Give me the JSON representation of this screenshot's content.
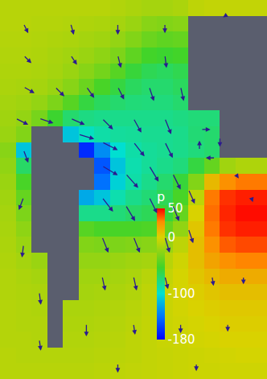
{
  "chart_data": {
    "type": "heatmap",
    "x": [
      0,
      1,
      2,
      3,
      4,
      5,
      6,
      7,
      8,
      9,
      10,
      11,
      12,
      13,
      14,
      15,
      16
    ],
    "y": [
      0,
      1,
      2,
      3,
      4,
      5,
      6,
      7,
      8,
      9,
      10,
      11,
      12,
      13,
      14,
      15,
      16,
      17,
      18,
      19,
      20,
      21,
      22,
      23
    ],
    "z": [
      [
        -12,
        -12,
        -12,
        -12,
        -12,
        -12,
        -12,
        -14,
        -16,
        -18,
        -18,
        -16,
        -10,
        -8,
        -8,
        -8,
        -8
      ],
      [
        -12,
        -12,
        -13,
        -13,
        -14,
        -15,
        -16,
        -18,
        -22,
        -28,
        -30,
        -28,
        null,
        null,
        null,
        null,
        null
      ],
      [
        -13,
        -13,
        -14,
        -15,
        -16,
        -18,
        -20,
        -24,
        -30,
        -38,
        -42,
        -40,
        null,
        null,
        null,
        null,
        null
      ],
      [
        -14,
        -14,
        -15,
        -17,
        -19,
        -22,
        -26,
        -32,
        -42,
        -52,
        -55,
        -52,
        null,
        null,
        null,
        null,
        null
      ],
      [
        -15,
        -15,
        -16,
        -18,
        -22,
        -28,
        -35,
        -45,
        -58,
        -65,
        -68,
        -64,
        null,
        null,
        null,
        null,
        null
      ],
      [
        -16,
        -17,
        -18,
        -22,
        -28,
        -38,
        -50,
        -60,
        -68,
        -72,
        -72,
        -68,
        null,
        null,
        null,
        null,
        null
      ],
      [
        -18,
        -20,
        -24,
        -32,
        -45,
        -60,
        -68,
        -72,
        -75,
        -76,
        -76,
        -72,
        null,
        null,
        null,
        null,
        null
      ],
      [
        -20,
        -24,
        -34,
        -55,
        -72,
        -78,
        -80,
        -80,
        -80,
        -80,
        -80,
        -78,
        -75,
        -75,
        null,
        null,
        null
      ],
      [
        -22,
        -30,
        null,
        null,
        -110,
        -95,
        -88,
        -85,
        -84,
        -82,
        -82,
        -80,
        -74,
        -72,
        null,
        null,
        null
      ],
      [
        -28,
        -110,
        null,
        null,
        null,
        -165,
        -130,
        -100,
        -88,
        -84,
        -82,
        -80,
        -76,
        -72,
        null,
        null,
        null
      ],
      [
        -25,
        -70,
        null,
        null,
        null,
        null,
        -150,
        -110,
        -90,
        -84,
        -80,
        -76,
        -60,
        -40,
        -20,
        -15,
        -15
      ],
      [
        -22,
        -50,
        null,
        null,
        null,
        null,
        -140,
        -105,
        -88,
        -80,
        -72,
        -58,
        -30,
        10,
        25,
        30,
        30
      ],
      [
        -20,
        -40,
        null,
        null,
        null,
        -120,
        -110,
        -90,
        -80,
        -74,
        -66,
        -50,
        -10,
        30,
        42,
        45,
        45
      ],
      [
        -18,
        -32,
        null,
        null,
        null,
        -80,
        -80,
        -75,
        -70,
        -66,
        -58,
        -40,
        0,
        32,
        44,
        48,
        48
      ],
      [
        -17,
        -26,
        null,
        null,
        null,
        -45,
        -50,
        -50,
        -50,
        -48,
        -40,
        -25,
        5,
        30,
        42,
        45,
        45
      ],
      [
        -16,
        -22,
        null,
        null,
        null,
        -30,
        -32,
        -32,
        -30,
        -28,
        -22,
        -10,
        8,
        25,
        35,
        38,
        38
      ],
      [
        -15,
        -18,
        -22,
        null,
        null,
        -24,
        -24,
        -22,
        -20,
        -18,
        -12,
        -4,
        8,
        18,
        25,
        28,
        28
      ],
      [
        -14,
        -16,
        -18,
        null,
        null,
        -20,
        -20,
        -18,
        -16,
        -12,
        -8,
        -2,
        5,
        10,
        15,
        15,
        15
      ],
      [
        -14,
        -15,
        -16,
        null,
        null,
        -18,
        -17,
        -16,
        -14,
        -10,
        -6,
        -2,
        2,
        5,
        8,
        8,
        8
      ],
      [
        -13,
        -14,
        -15,
        null,
        -16,
        -16,
        -15,
        -14,
        -12,
        -9,
        -6,
        -3,
        0,
        2,
        4,
        4,
        4
      ],
      [
        -13,
        -14,
        -14,
        null,
        -15,
        -15,
        -14,
        -13,
        -11,
        -8,
        -6,
        -4,
        -2,
        0,
        2,
        2,
        2
      ],
      [
        -13,
        -13,
        -14,
        null,
        -14,
        -14,
        -13,
        -12,
        -10,
        -8,
        -6,
        -5,
        -3,
        -2,
        0,
        0,
        0
      ],
      [
        -12,
        -13,
        -13,
        -13,
        -13,
        -13,
        -12,
        -11,
        -10,
        -8,
        -7,
        -6,
        -5,
        -4,
        -3,
        -2,
        -2
      ],
      [
        -12,
        -12,
        -12,
        -12,
        -12,
        -12,
        -11,
        -10,
        -9,
        -8,
        -7,
        -6,
        -5,
        -5,
        -4,
        -4,
        -4
      ]
    ],
    "xlim": [
      -0.5,
      16.5
    ],
    "ylim": [
      23.5,
      -0.5
    ],
    "tick_labels": false,
    "colorbar": {
      "title": "p",
      "range": [
        -180,
        50
      ],
      "ticks": [
        50,
        0,
        -100,
        -180
      ]
    },
    "vectors": {
      "color": "#2b1b8f",
      "x": [
        1,
        4,
        7,
        10,
        1,
        4,
        7,
        10,
        1,
        3,
        5,
        7,
        9,
        11,
        0.5,
        2,
        4,
        6,
        8,
        10,
        1,
        4.5,
        6,
        8,
        10,
        6,
        7.5,
        9,
        10.5,
        6,
        7.5,
        9,
        10.5,
        11.5,
        6,
        8,
        10,
        11.5,
        6,
        8,
        10,
        13,
        15,
        1,
        1,
        2,
        5,
        8,
        11,
        14,
        2,
        7,
        12,
        12.3,
        13.5,
        13.2,
        12.2,
        14,
        14.5,
        15.5
      ],
      "y": [
        1,
        1,
        1,
        1,
        3,
        3,
        3,
        3,
        5,
        5,
        5,
        5,
        5,
        5,
        7,
        7,
        7,
        7,
        7,
        7,
        9,
        8,
        8.5,
        8.5,
        8.5,
        10,
        10.5,
        10,
        10.5,
        12,
        12.5,
        12,
        12.5,
        11.5,
        14.5,
        14.5,
        14.5,
        14,
        17,
        17,
        17,
        17,
        17,
        12,
        15,
        18,
        20,
        20,
        20,
        20,
        21,
        22.5,
        22.5,
        7.7,
        8.2,
        9.5,
        9,
        0.4,
        10.5,
        12
      ],
      "u": [
        0.3,
        0.2,
        0,
        0,
        0.5,
        0.4,
        0.2,
        0.1,
        0.7,
        0.6,
        0.5,
        0.4,
        0.3,
        0.2,
        0.8,
        0.9,
        0.9,
        0.7,
        0.5,
        0.4,
        0.3,
        1,
        1,
        0.7,
        0.5,
        1,
        0.8,
        0.6,
        0.5,
        0.7,
        0.6,
        0.5,
        0.4,
        0.4,
        0.4,
        0.4,
        0.3,
        0.3,
        0.2,
        0.2,
        0.2,
        0.1,
        0,
        -0.3,
        -0.1,
        0.1,
        0,
        0.1,
        0,
        0,
        0.1,
        0,
        0,
        0.6,
        0,
        -0.6,
        0,
        -0.3,
        0.2,
        0.1
      ],
      "v": [
        0.6,
        0.7,
        0.7,
        0.6,
        0.5,
        0.6,
        0.8,
        0.8,
        0.4,
        0.6,
        0.7,
        0.8,
        0.9,
        0.9,
        0.4,
        0.3,
        0.4,
        0.7,
        0.9,
        1,
        0.8,
        0.3,
        0.5,
        0.9,
        1,
        0.6,
        0.9,
        1,
        1,
        0.9,
        1,
        1,
        1,
        0.9,
        1,
        1,
        1,
        0.9,
        0.9,
        0.9,
        0.8,
        0.6,
        0.5,
        0.8,
        0.8,
        0.8,
        0.8,
        0.7,
        0.6,
        0.5,
        0.7,
        0.6,
        0.5,
        0,
        0.6,
        0,
        -0.6,
        0.2,
        0.3,
        0.3
      ]
    }
  }
}
